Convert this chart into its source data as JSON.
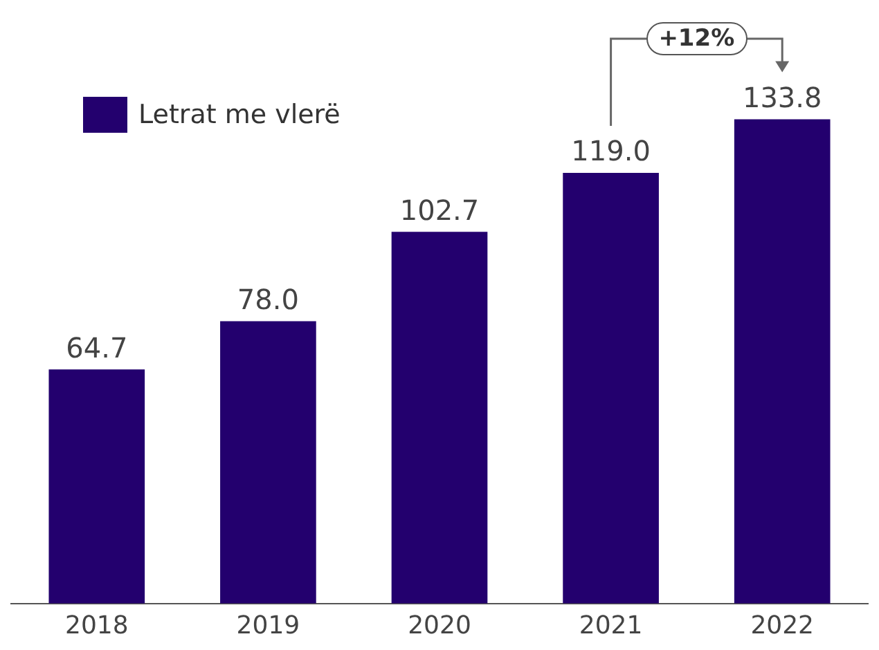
{
  "chart_data": {
    "type": "bar",
    "categories": [
      "2018",
      "2019",
      "2020",
      "2021",
      "2022"
    ],
    "series": [
      {
        "name": "Letrat me vlerë",
        "color": "#23006e",
        "values": [
          64.7,
          78.0,
          102.7,
          119.0,
          133.8
        ],
        "value_labels": [
          "64.7",
          "78.0",
          "102.7",
          "119.0",
          "133.8"
        ]
      }
    ],
    "legend": "top left",
    "grid": false,
    "annotations": [
      "+12%"
    ]
  }
}
